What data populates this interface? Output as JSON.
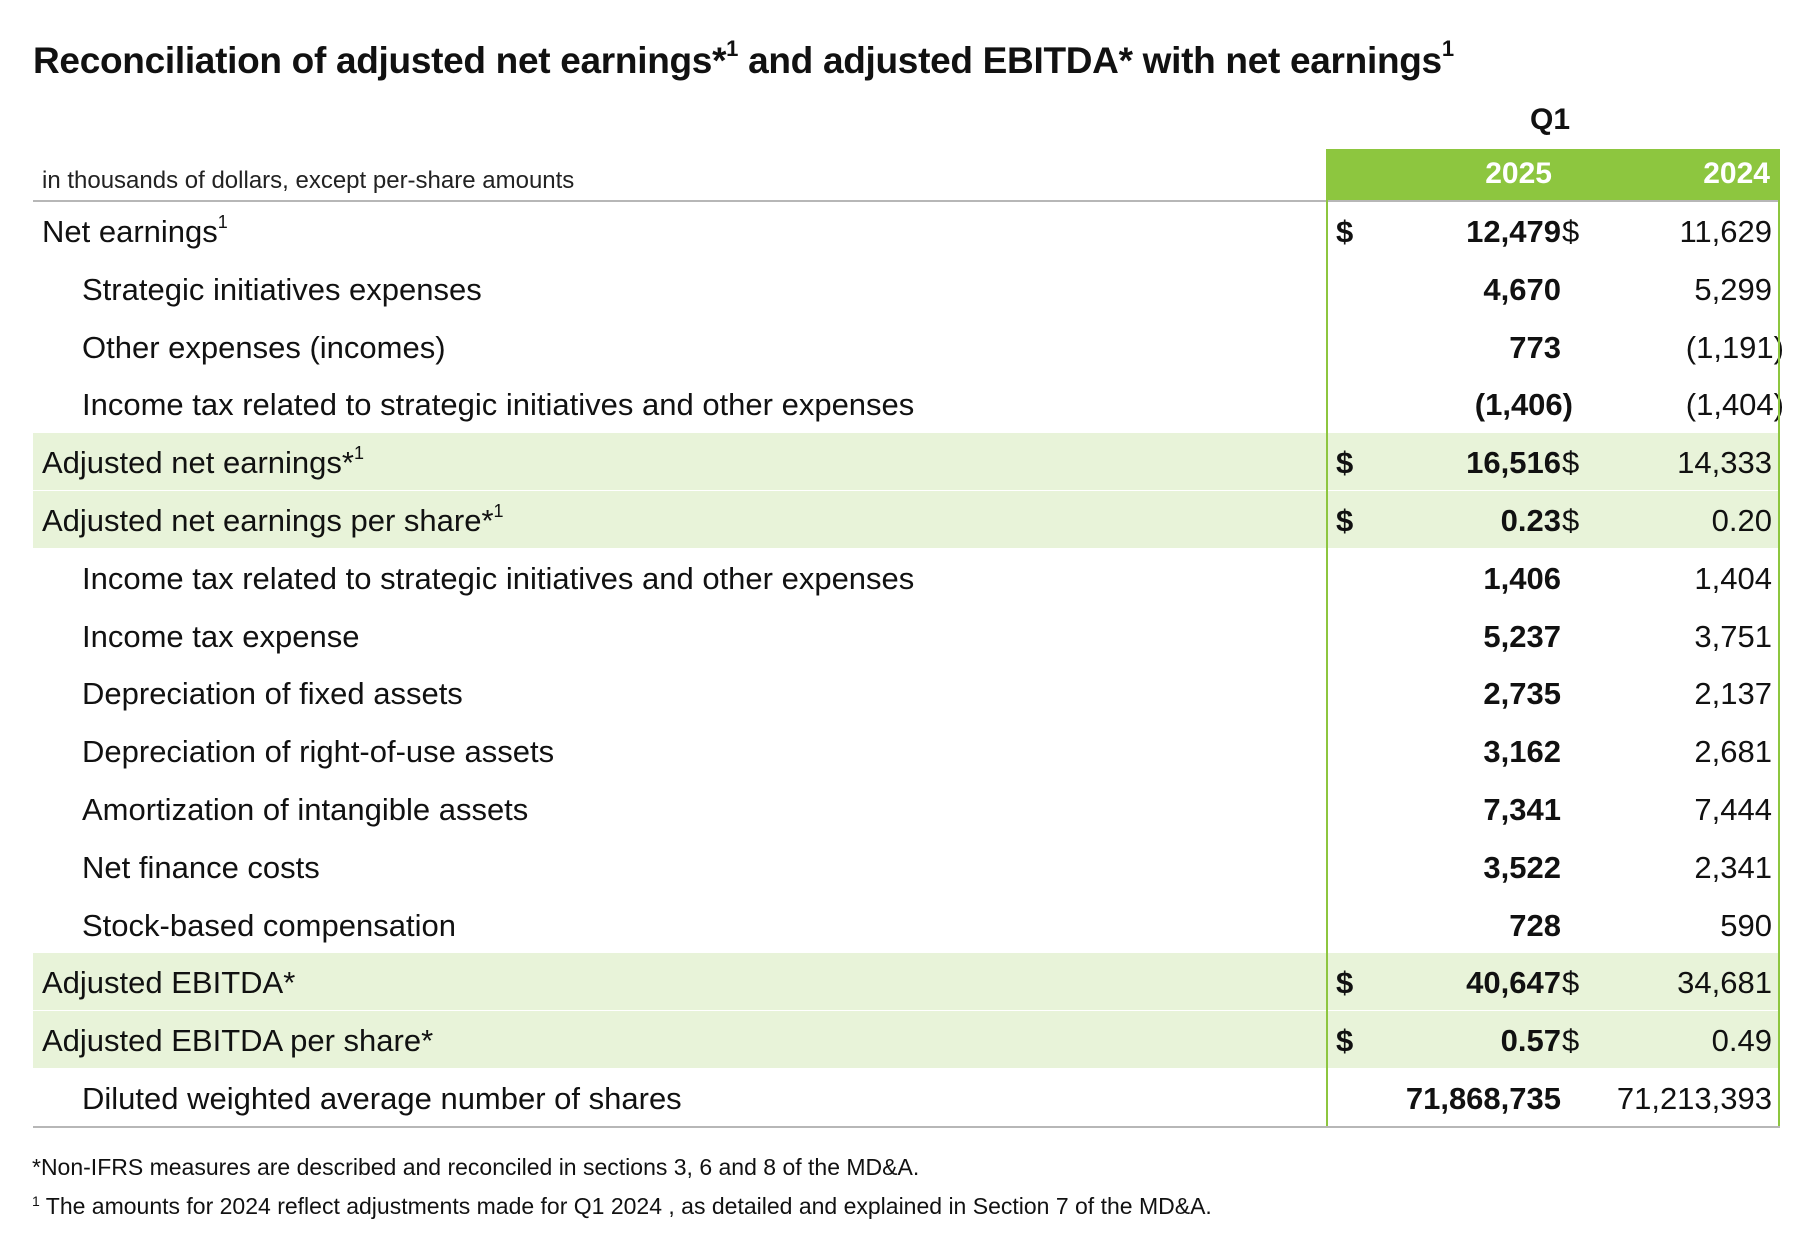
{
  "title": {
    "part1": "Reconciliation of adjusted net earnings*",
    "sup1": "1",
    "part2": " and adjusted EBITDA* with net earnings",
    "sup2": "1"
  },
  "period_label": "Q1",
  "units_note": "in thousands of dollars, except per-share amounts",
  "columns": {
    "current": "2025",
    "prior": "2024"
  },
  "currency_symbol": "$",
  "rows": [
    {
      "label": "Net earnings",
      "sup": "1",
      "level": 0,
      "highlight": false,
      "dollar": true,
      "v2025": "12,479",
      "v2024": "11,629"
    },
    {
      "label": "Strategic initiatives expenses",
      "sup": "",
      "level": 1,
      "highlight": false,
      "dollar": false,
      "v2025": "4,670",
      "v2024": "5,299"
    },
    {
      "label": "Other expenses (incomes)",
      "sup": "",
      "level": 1,
      "highlight": false,
      "dollar": false,
      "v2025": "773",
      "v2024": "(1,191)"
    },
    {
      "label": "Income tax related to strategic initiatives and other expenses",
      "sup": "",
      "level": 1,
      "highlight": false,
      "dollar": false,
      "v2025": "(1,406)",
      "v2024": "(1,404)"
    },
    {
      "label": "Adjusted net earnings*",
      "sup": "1",
      "level": 0,
      "highlight": true,
      "dollar": true,
      "v2025": "16,516",
      "v2024": "14,333"
    },
    {
      "label": "Adjusted net earnings per share*",
      "sup": "1",
      "level": 0,
      "highlight": true,
      "dollar": true,
      "v2025": "0.23",
      "v2024": "0.20"
    },
    {
      "label": "Income tax related to strategic initiatives and other expenses",
      "sup": "",
      "level": 1,
      "highlight": false,
      "dollar": false,
      "v2025": "1,406",
      "v2024": "1,404"
    },
    {
      "label": "Income tax expense",
      "sup": "",
      "level": 1,
      "highlight": false,
      "dollar": false,
      "v2025": "5,237",
      "v2024": "3,751"
    },
    {
      "label": "Depreciation of fixed assets",
      "sup": "",
      "level": 1,
      "highlight": false,
      "dollar": false,
      "v2025": "2,735",
      "v2024": "2,137"
    },
    {
      "label": "Depreciation of right-of-use assets",
      "sup": "",
      "level": 1,
      "highlight": false,
      "dollar": false,
      "v2025": "3,162",
      "v2024": "2,681"
    },
    {
      "label": "Amortization of intangible assets",
      "sup": "",
      "level": 1,
      "highlight": false,
      "dollar": false,
      "v2025": "7,341",
      "v2024": "7,444"
    },
    {
      "label": "Net finance costs",
      "sup": "",
      "level": 1,
      "highlight": false,
      "dollar": false,
      "v2025": "3,522",
      "v2024": "2,341"
    },
    {
      "label": "Stock-based compensation",
      "sup": "",
      "level": 1,
      "highlight": false,
      "dollar": false,
      "v2025": "728",
      "v2024": "590"
    },
    {
      "label": "Adjusted EBITDA*",
      "sup": "",
      "level": 0,
      "highlight": true,
      "dollar": true,
      "v2025": "40,647",
      "v2024": "34,681"
    },
    {
      "label": "Adjusted EBITDA per share*",
      "sup": "",
      "level": 0,
      "highlight": true,
      "dollar": true,
      "v2025": "0.57",
      "v2024": "0.49"
    },
    {
      "label": "Diluted weighted average number of shares",
      "sup": "",
      "level": 1,
      "highlight": false,
      "dollar": false,
      "v2025": "71,868,735",
      "v2024": "71,213,393"
    }
  ],
  "footnotes": {
    "note1": "*Non-IFRS measures are described and reconciled in sections 3, 6 and 8 of the MD&A.",
    "note2_sup": "1",
    "note2": "The amounts for 2024 reflect adjustments made for Q1 2024 , as detailed and explained in Section 7 of the MD&A."
  },
  "colors": {
    "header_green": "#8dc63f",
    "highlight_green": "#e8f3d9",
    "rule_gray": "#b7b7b7"
  }
}
